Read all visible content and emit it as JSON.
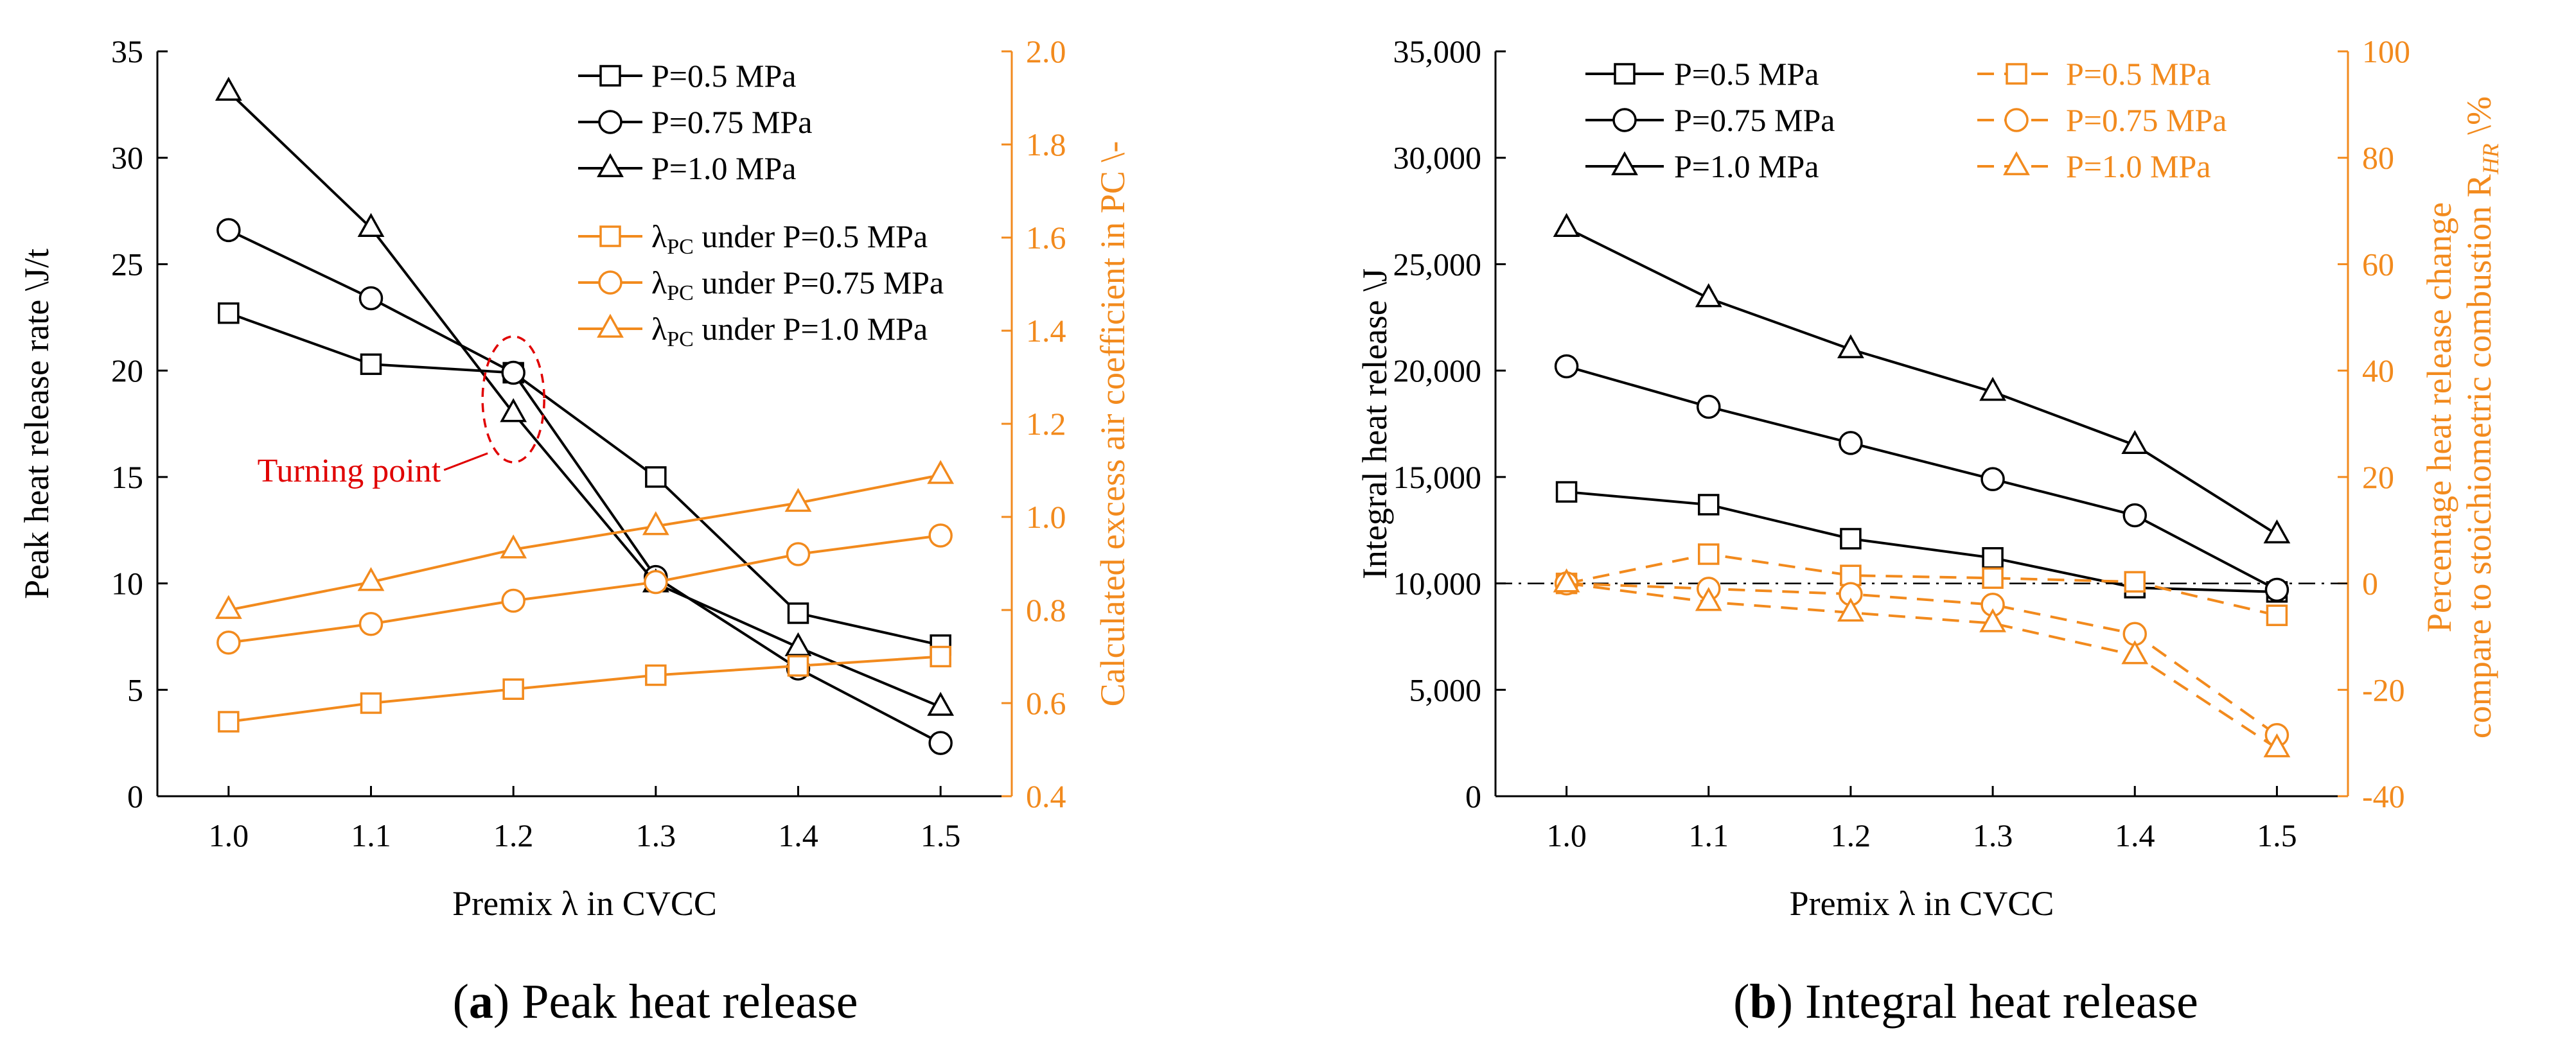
{
  "captions": {
    "a": {
      "letter": "a",
      "text": "Peak heat release"
    },
    "b": {
      "letter": "b",
      "text": "Integral heat release"
    }
  },
  "annotation": {
    "turning_point": "Turning point"
  },
  "colors": {
    "black": "#000000",
    "orange": "#F28A1D",
    "red": "#E00000"
  },
  "chart_data": [
    {
      "id": "a",
      "type": "line",
      "title": "Peak heat release",
      "xlabel": "Premix λ in CVCC",
      "ylabel": "Peak heat release rate \\J/t",
      "y2label": "Calculated excess air coefficient in PC \\-",
      "x": [
        1.0,
        1.1,
        1.2,
        1.3,
        1.4,
        1.5
      ],
      "xticks": [
        "1.0",
        "1.1",
        "1.2",
        "1.3",
        "1.4",
        "1.5"
      ],
      "xlim": [
        0.95,
        1.55
      ],
      "ylim": [
        0,
        35
      ],
      "yticks": [
        "0",
        "5",
        "10",
        "15",
        "20",
        "25",
        "30",
        "35"
      ],
      "y2lim": [
        0.4,
        2.0
      ],
      "y2ticks": [
        "0.4",
        "0.6",
        "0.8",
        "1.0",
        "1.2",
        "1.4",
        "1.6",
        "1.8",
        "2.0"
      ],
      "legend_position": "top-right",
      "series": [
        {
          "name": "P=0.5 MPa",
          "axis": "left",
          "marker": "square",
          "color": "#000000",
          "dash": false,
          "values": [
            22.7,
            20.3,
            19.9,
            15.0,
            8.6,
            7.1
          ]
        },
        {
          "name": "P=0.75 MPa",
          "axis": "left",
          "marker": "circle",
          "color": "#000000",
          "dash": false,
          "values": [
            26.6,
            23.4,
            19.9,
            10.3,
            6.0,
            2.5
          ]
        },
        {
          "name": "P=1.0 MPa",
          "axis": "left",
          "marker": "triangle",
          "color": "#000000",
          "dash": false,
          "values": [
            33.1,
            26.7,
            18.0,
            10.0,
            7.0,
            4.2
          ]
        },
        {
          "name": "λ",
          "sub": "PC",
          "tail": " under P=0.5 MPa",
          "axis": "right",
          "marker": "square",
          "color": "#F28A1D",
          "dash": false,
          "values": [
            0.56,
            0.6,
            0.63,
            0.66,
            0.68,
            0.7
          ]
        },
        {
          "name": "λ",
          "sub": "PC",
          "tail": " under P=0.75 MPa",
          "axis": "right",
          "marker": "circle",
          "color": "#F28A1D",
          "dash": false,
          "values": [
            0.73,
            0.77,
            0.82,
            0.86,
            0.92,
            0.96
          ]
        },
        {
          "name": "λ",
          "sub": "PC",
          "tail": " under P=1.0 MPa",
          "axis": "right",
          "marker": "triangle",
          "color": "#F28A1D",
          "dash": false,
          "values": [
            0.8,
            0.86,
            0.93,
            0.98,
            1.03,
            1.09
          ]
        }
      ]
    },
    {
      "id": "b",
      "type": "line",
      "title": "Integral heat release",
      "xlabel": "Premix λ in CVCC",
      "ylabel": "Integral heat release \\J",
      "y2label_line1": "Percentage heat release change",
      "y2label_line2": "compare to stoichiometric combustion R",
      "y2label_sub": "HR",
      "y2label_tail": " \\%",
      "x": [
        1.0,
        1.1,
        1.2,
        1.3,
        1.4,
        1.5
      ],
      "xticks": [
        "1.0",
        "1.1",
        "1.2",
        "1.3",
        "1.4",
        "1.5"
      ],
      "xlim": [
        0.95,
        1.55
      ],
      "ylim": [
        0,
        35000
      ],
      "yticks": [
        "0",
        "5,000",
        "10,000",
        "15,000",
        "20,000",
        "25,000",
        "30,000",
        "35,000"
      ],
      "y2lim": [
        -40,
        100
      ],
      "y2ticks": [
        "-40",
        "-20",
        "0",
        "20",
        "40",
        "60",
        "80",
        "100"
      ],
      "reference_line": {
        "axis": "right",
        "value": 0,
        "style": "dash-dot"
      },
      "legend_position": "top",
      "series": [
        {
          "name": "P=0.5 MPa",
          "axis": "left",
          "marker": "square",
          "color": "#000000",
          "dash": false,
          "values": [
            14300,
            13700,
            12100,
            11200,
            9800,
            9600
          ]
        },
        {
          "name": "P=0.75 MPa",
          "axis": "left",
          "marker": "circle",
          "color": "#000000",
          "dash": false,
          "values": [
            20200,
            18300,
            16600,
            14900,
            13200,
            9700
          ]
        },
        {
          "name": "P=1.0 MPa",
          "axis": "left",
          "marker": "triangle",
          "color": "#000000",
          "dash": false,
          "values": [
            26700,
            23400,
            21000,
            19000,
            16500,
            12300
          ]
        },
        {
          "name": "P=0.5 MPa",
          "axis": "right",
          "marker": "square",
          "color": "#F28A1D",
          "dash": true,
          "values": [
            0,
            5.5,
            1.5,
            1.0,
            0.3,
            -6.0
          ]
        },
        {
          "name": "P=0.75 MPa",
          "axis": "right",
          "marker": "circle",
          "color": "#F28A1D",
          "dash": true,
          "values": [
            0,
            -1.0,
            -2.0,
            -4.0,
            -9.5,
            -28.5
          ]
        },
        {
          "name": "P=1.0 MPa",
          "axis": "right",
          "marker": "triangle",
          "color": "#F28A1D",
          "dash": true,
          "values": [
            0,
            -3.5,
            -5.5,
            -7.5,
            -13.5,
            -31.0
          ]
        }
      ]
    }
  ]
}
